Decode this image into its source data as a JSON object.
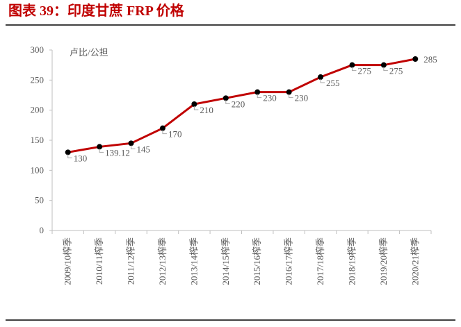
{
  "chart_data": {
    "type": "line",
    "title": "图表 39：印度甘蔗 FRP 价格",
    "y_label": "卢比/公担",
    "categories": [
      "2009/10榨季",
      "2010/11榨季",
      "2011/12榨季",
      "2012/13榨季",
      "2013/14榨季",
      "2014/15榨季",
      "2015/16榨季",
      "2016/17榨季",
      "2017/18榨季",
      "2018/19榨季",
      "2019/20榨季",
      "2020/21榨季"
    ],
    "series": [
      {
        "color": "#c00000",
        "values": [
          130,
          139.12,
          145,
          170,
          210,
          220,
          230,
          230,
          255,
          275,
          275,
          285
        ]
      }
    ],
    "ylim": [
      0,
      300
    ],
    "yticks": [
      0,
      50,
      100,
      150,
      200,
      250,
      300
    ]
  }
}
